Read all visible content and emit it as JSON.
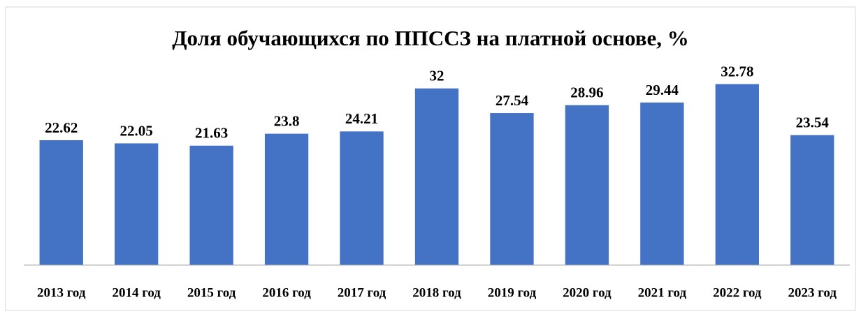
{
  "chart_data": {
    "type": "bar",
    "title": "Доля обучающихся по ППССЗ на платной основе, %",
    "categories": [
      "2013 год",
      "2014 год",
      "2015 год",
      "2016 год",
      "2017 год",
      "2018 год",
      "2019 год",
      "2020 год",
      "2021 год",
      "2022 год",
      "2023 год"
    ],
    "values": [
      22.62,
      22.05,
      21.63,
      23.8,
      24.21,
      32,
      27.54,
      28.96,
      29.44,
      32.78,
      23.54
    ],
    "color": "#4472c4",
    "ylim": [
      0,
      35
    ]
  }
}
